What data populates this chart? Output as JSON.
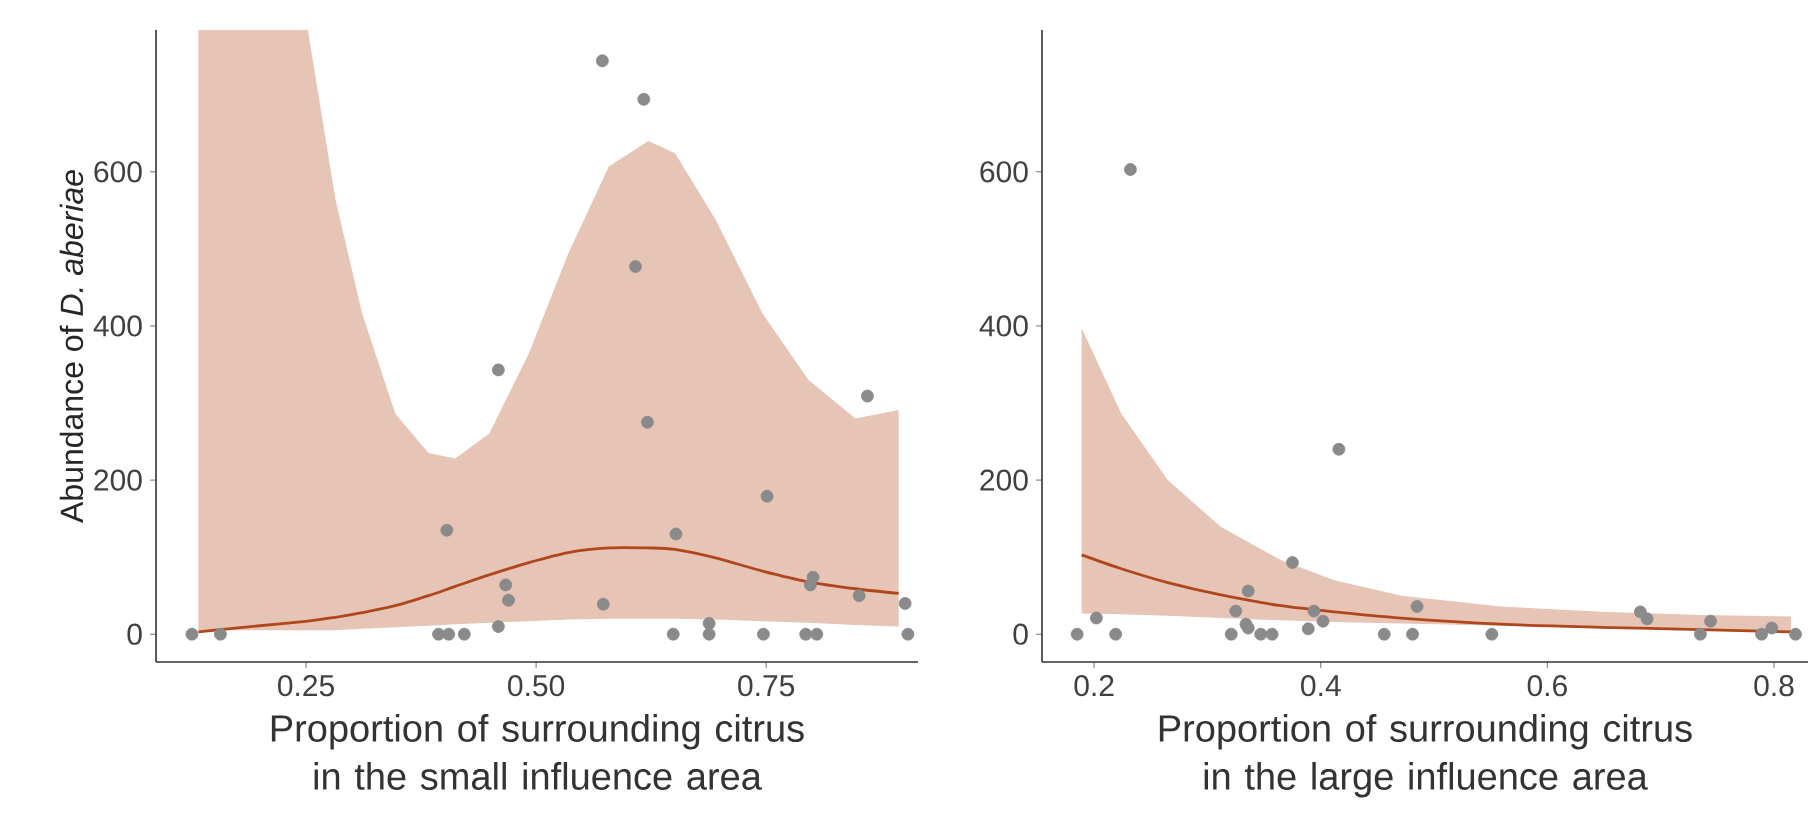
{
  "chart_data": [
    {
      "type": "scatter",
      "ylabel": "Abundance of *D. aberiae*",
      "xlabel": "Proportion of surrounding citrus in the small influence area",
      "xlim": [
        0.087,
        0.915
      ],
      "ylim": [
        -36,
        784
      ],
      "xticks": [
        {
          "value": 0.25,
          "label": "0.25"
        },
        {
          "value": 0.5,
          "label": "0.50"
        },
        {
          "value": 0.75,
          "label": "0.75"
        }
      ],
      "yticks": [
        0,
        200,
        400,
        600
      ],
      "grid": false,
      "series": [
        {
          "type": "line",
          "color": "#b0471c",
          "marker": "none",
          "line_style": "solid",
          "x": [
            0.133,
            0.19,
            0.252,
            0.282,
            0.311,
            0.347,
            0.383,
            0.412,
            0.449,
            0.492,
            0.535,
            0.579,
            0.622,
            0.651,
            0.695,
            0.746,
            0.796,
            0.847,
            0.894
          ],
          "values": [
            3,
            10,
            17,
            22,
            28,
            37,
            50,
            62,
            77,
            93,
            106,
            112,
            112,
            110,
            99,
            82,
            68,
            59,
            53
          ],
          "lower": [
            5,
            5,
            5,
            5,
            7,
            9,
            11,
            13,
            15,
            17,
            19,
            20,
            20,
            20,
            19,
            17,
            15,
            12,
            10
          ],
          "upper": [
            784,
            784,
            784,
            564,
            416,
            286,
            235,
            228,
            260,
            364,
            494,
            607,
            640,
            624,
            538,
            416,
            330,
            280,
            291
          ]
        },
        {
          "color": "#8a8a8a",
          "marker": "circle",
          "x": [
            0.126,
            0.157,
            0.394,
            0.405,
            0.422,
            0.459,
            0.403,
            0.467,
            0.47,
            0.459,
            0.572,
            0.617,
            0.608,
            0.621,
            0.573,
            0.652,
            0.649,
            0.688,
            0.688,
            0.751,
            0.747,
            0.793,
            0.805,
            0.798,
            0.801,
            0.851,
            0.86,
            0.901,
            0.904
          ],
          "values": [
            0,
            0,
            0,
            0,
            0,
            343,
            135,
            64,
            44,
            10,
            744,
            694,
            477,
            275,
            39,
            130,
            0,
            14,
            0,
            179,
            0,
            0,
            0,
            64,
            74,
            50,
            309,
            40,
            0
          ]
        }
      ]
    },
    {
      "type": "scatter",
      "xlabel": "Proportion of surrounding citrus in the large influence area",
      "xlim": [
        0.154,
        0.83
      ],
      "ylim": [
        -36,
        784
      ],
      "xticks": [
        0.2,
        0.4,
        0.6,
        0.8
      ],
      "yticks": [
        0,
        200,
        400,
        600
      ],
      "grid": false,
      "series": [
        {
          "type": "line",
          "color": "#b0471c",
          "marker": "none",
          "line_style": "solid",
          "x": [
            0.189,
            0.224,
            0.265,
            0.312,
            0.365,
            0.412,
            0.471,
            0.559,
            0.647,
            0.735,
            0.815
          ],
          "values": [
            103,
            85,
            67,
            51,
            37,
            29,
            21,
            13,
            9,
            6,
            3
          ],
          "lower": [
            27,
            26,
            24,
            21,
            18,
            16,
            14,
            11,
            8,
            5,
            3
          ],
          "upper": [
            397,
            286,
            200,
            139,
            96,
            70,
            50,
            36,
            29,
            25,
            23
          ]
        },
        {
          "color": "#8a8a8a",
          "marker": "circle",
          "x": [
            0.185,
            0.202,
            0.219,
            0.232,
            0.321,
            0.325,
            0.336,
            0.334,
            0.336,
            0.347,
            0.357,
            0.375,
            0.389,
            0.394,
            0.402,
            0.416,
            0.456,
            0.481,
            0.485,
            0.551,
            0.682,
            0.688,
            0.735,
            0.744,
            0.789,
            0.798,
            0.819
          ],
          "values": [
            0,
            21,
            0,
            603,
            0,
            30,
            56,
            13,
            8,
            0,
            0,
            93,
            7,
            30,
            17,
            240,
            0,
            0,
            36,
            0,
            29,
            20,
            0,
            17,
            0,
            8,
            0
          ]
        }
      ]
    }
  ]
}
